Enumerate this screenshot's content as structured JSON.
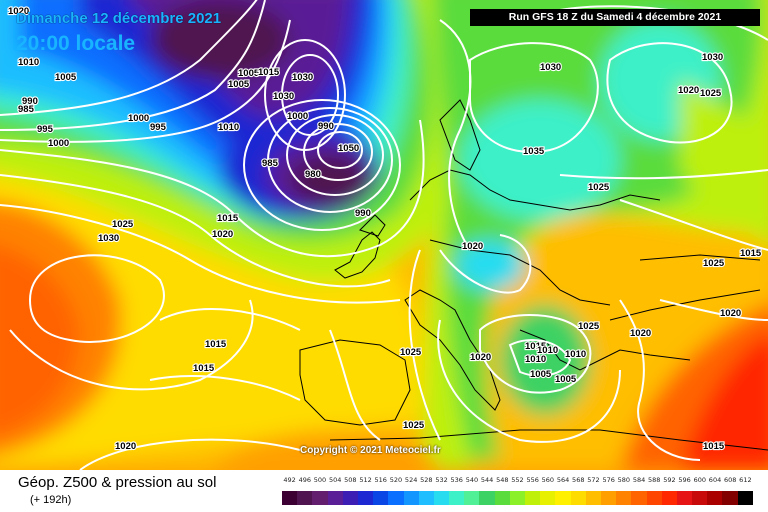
{
  "header": {
    "date_title": "Dimanche 12 décembre 2021",
    "time_title": "20:00 locale",
    "run_label": "Run GFS 18 Z du Samedi 4 décembre 2021"
  },
  "footer": {
    "parameter": "Géop. Z500 & pression au sol",
    "forecast_hour": "(+ 192h)",
    "copyright": "Copyright © 2021 Meteociel.fr"
  },
  "colors": {
    "title_text": "#19b4ff",
    "isobar": "#ffffff",
    "coastline": "#000000"
  },
  "scale": {
    "labels": [
      "492",
      "496",
      "500",
      "504",
      "508",
      "512",
      "516",
      "520",
      "524",
      "528",
      "532",
      "536",
      "540",
      "544",
      "548",
      "552",
      "556",
      "560",
      "564",
      "568",
      "572",
      "576",
      "580",
      "584",
      "588",
      "592",
      "596",
      "600",
      "604",
      "608",
      "612"
    ],
    "colors": [
      "#3c0032",
      "#501450",
      "#641e6e",
      "#5a1e96",
      "#3c1eb4",
      "#1e28d2",
      "#0a46e6",
      "#0a6eff",
      "#1496ff",
      "#1ebeff",
      "#28dcf0",
      "#3cf0c8",
      "#50f096",
      "#3cd264",
      "#5adc3c",
      "#8cf028",
      "#bef00a",
      "#e6f000",
      "#fff000",
      "#ffdc00",
      "#ffbe00",
      "#ffa000",
      "#ff8200",
      "#ff6400",
      "#ff4600",
      "#ff2800",
      "#e61414",
      "#c80a0a",
      "#aa0000",
      "#820000",
      "#000000"
    ]
  },
  "pressure_labels": [
    "1020",
    "1010",
    "1005",
    "990",
    "985",
    "995",
    "1000",
    "1000",
    "995",
    "1005",
    "1005",
    "1030",
    "1015",
    "1030",
    "1050",
    "1010",
    "1000",
    "990",
    "985",
    "980",
    "990",
    "1015",
    "1020",
    "1025",
    "1030",
    "1015",
    "1015",
    "1020",
    "1035",
    "1025",
    "1030",
    "1020",
    "1025",
    "1020",
    "1025",
    "1025",
    "1020",
    "1010",
    "1015",
    "1010",
    "1005",
    "1005",
    "1010",
    "1015",
    "1025",
    "1020",
    "1015",
    "1030",
    "1025",
    "1020"
  ]
}
